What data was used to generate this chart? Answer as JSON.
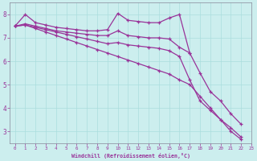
{
  "xlabel": "Windchill (Refroidissement éolien,°C)",
  "bg_color": "#cceeee",
  "line_color": "#993399",
  "grid_color": "#aadddd",
  "xlim": [
    -0.5,
    23
  ],
  "ylim": [
    2.5,
    8.5
  ],
  "yticks": [
    3,
    4,
    5,
    6,
    7,
    8
  ],
  "xticks": [
    0,
    1,
    2,
    3,
    4,
    5,
    6,
    7,
    8,
    9,
    10,
    11,
    12,
    13,
    14,
    15,
    16,
    17,
    18,
    19,
    20,
    21,
    22,
    23
  ],
  "series": [
    {
      "x": [
        0,
        1,
        2,
        3,
        4,
        5,
        6,
        7,
        8,
        9,
        10,
        11,
        12,
        13,
        14,
        15,
        16,
        17
      ],
      "y": [
        7.5,
        8.0,
        7.65,
        7.55,
        7.45,
        7.4,
        7.35,
        7.3,
        7.3,
        7.35,
        8.05,
        7.75,
        7.7,
        7.65,
        7.65,
        7.85,
        8.0,
        6.35
      ]
    },
    {
      "x": [
        0,
        1,
        2,
        3,
        4,
        5,
        6,
        7,
        8,
        9,
        10,
        11,
        12,
        13,
        14,
        15,
        16,
        17,
        18,
        19,
        20,
        21,
        22
      ],
      "y": [
        7.5,
        7.6,
        7.5,
        7.4,
        7.3,
        7.25,
        7.2,
        7.15,
        7.1,
        7.1,
        7.3,
        7.1,
        7.05,
        7.0,
        7.0,
        6.95,
        6.6,
        6.35,
        5.5,
        4.7,
        4.3,
        3.75,
        3.3
      ]
    },
    {
      "x": [
        0,
        1,
        2,
        3,
        4,
        5,
        6,
        7,
        8,
        9,
        10,
        11,
        12,
        13,
        14,
        15,
        16,
        17,
        18,
        19,
        20,
        21,
        22
      ],
      "y": [
        7.5,
        7.55,
        7.45,
        7.35,
        7.25,
        7.15,
        7.05,
        6.95,
        6.85,
        6.75,
        6.8,
        6.7,
        6.65,
        6.6,
        6.55,
        6.45,
        6.2,
        5.2,
        4.3,
        3.9,
        3.5,
        3.15,
        2.75
      ]
    },
    {
      "x": [
        0,
        1,
        2,
        3,
        4,
        5,
        6,
        7,
        8,
        9,
        10,
        11,
        12,
        13,
        14,
        15,
        16,
        17,
        18,
        19,
        20,
        21,
        22
      ],
      "y": [
        7.5,
        7.55,
        7.4,
        7.25,
        7.1,
        6.95,
        6.8,
        6.65,
        6.5,
        6.35,
        6.2,
        6.05,
        5.9,
        5.75,
        5.6,
        5.45,
        5.2,
        5.0,
        4.5,
        4.0,
        3.5,
        3.0,
        2.65
      ]
    }
  ]
}
